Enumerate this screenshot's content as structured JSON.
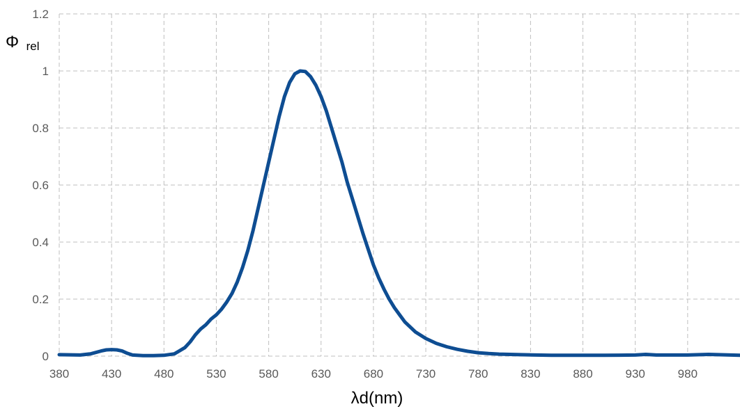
{
  "chart_data": {
    "type": "line",
    "ylabel_main": "Φ",
    "ylabel_sub": "rel",
    "xlabel": "λd(nm)",
    "xlim": [
      380,
      1030
    ],
    "ylim": [
      0,
      1.2
    ],
    "x_ticks": [
      380,
      430,
      480,
      530,
      580,
      630,
      680,
      730,
      780,
      830,
      880,
      930,
      980
    ],
    "x_tick_labels": [
      "380",
      "430",
      "480",
      "530",
      "580",
      "630",
      "680",
      "730",
      "780",
      "830",
      "880",
      "930",
      "980"
    ],
    "y_ticks": [
      0,
      0.2,
      0.4,
      0.6,
      0.8,
      1,
      1.2
    ],
    "y_tick_labels": [
      "0",
      "0.2",
      "0.4",
      "0.6",
      "0.8",
      "1",
      "1.2"
    ],
    "grid": true,
    "series": [
      {
        "color": "#0e4d92",
        "x": [
          380,
          400,
          410,
          420,
          425,
          430,
          435,
          440,
          445,
          450,
          460,
          470,
          480,
          490,
          500,
          505,
          510,
          515,
          520,
          525,
          530,
          535,
          540,
          545,
          550,
          555,
          560,
          565,
          570,
          575,
          580,
          585,
          590,
          595,
          600,
          605,
          610,
          615,
          620,
          625,
          630,
          635,
          640,
          645,
          650,
          655,
          660,
          665,
          670,
          675,
          680,
          685,
          690,
          695,
          700,
          705,
          710,
          720,
          730,
          740,
          750,
          760,
          770,
          780,
          790,
          800,
          820,
          850,
          900,
          930,
          940,
          950,
          980,
          1000,
          1030
        ],
        "y": [
          0.005,
          0.004,
          0.008,
          0.018,
          0.022,
          0.023,
          0.022,
          0.018,
          0.01,
          0.004,
          0.002,
          0.002,
          0.003,
          0.008,
          0.03,
          0.05,
          0.075,
          0.095,
          0.11,
          0.13,
          0.145,
          0.165,
          0.19,
          0.22,
          0.26,
          0.31,
          0.37,
          0.44,
          0.52,
          0.6,
          0.68,
          0.76,
          0.84,
          0.91,
          0.96,
          0.99,
          1.0,
          0.998,
          0.98,
          0.95,
          0.91,
          0.86,
          0.8,
          0.74,
          0.68,
          0.61,
          0.55,
          0.49,
          0.43,
          0.375,
          0.32,
          0.275,
          0.235,
          0.2,
          0.17,
          0.145,
          0.12,
          0.085,
          0.062,
          0.045,
          0.033,
          0.024,
          0.017,
          0.012,
          0.009,
          0.007,
          0.005,
          0.003,
          0.003,
          0.004,
          0.006,
          0.004,
          0.004,
          0.006,
          0.003
        ]
      }
    ]
  }
}
